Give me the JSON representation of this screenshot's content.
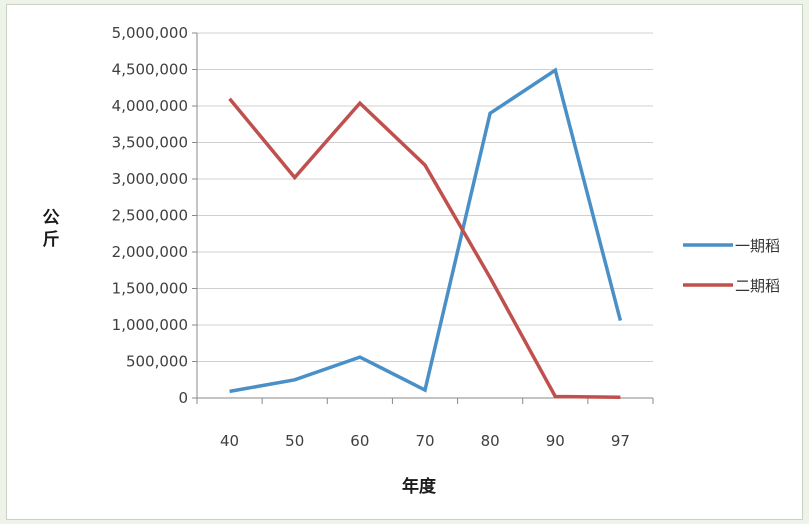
{
  "chart_data": {
    "type": "line",
    "categories": [
      "40",
      "50",
      "60",
      "70",
      "80",
      "90",
      "97"
    ],
    "series": [
      {
        "name": "一期稻",
        "color": "#4a90c8",
        "values": [
          90000,
          250000,
          560000,
          110000,
          3900000,
          4490000,
          1060000
        ]
      },
      {
        "name": "二期稻",
        "color": "#c0504d",
        "values": [
          4100000,
          3020000,
          4040000,
          3190000,
          1650000,
          20000,
          10000
        ]
      }
    ],
    "xlabel": "年度",
    "ylabel": "公斤",
    "ylim": [
      0,
      5000000
    ],
    "yticks": [
      "0",
      "500,000",
      "1,000,000",
      "1,500,000",
      "2,000,000",
      "2,500,000",
      "3,000,000",
      "3,500,000",
      "4,000,000",
      "4,500,000",
      "5,000,000"
    ],
    "grid": true,
    "legend_position": "right"
  }
}
